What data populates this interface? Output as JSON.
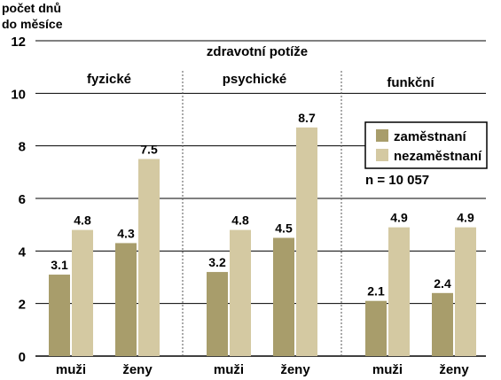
{
  "chart_data": {
    "type": "bar",
    "ylabel_lines": [
      "počet dnů",
      "do měsíce"
    ],
    "section_title": "zdravotní potíže",
    "ylim": [
      0,
      12
    ],
    "yticks": [
      0,
      2,
      4,
      6,
      8,
      10,
      12
    ],
    "grid": true,
    "legend_position": "right",
    "note": "n = 10 057",
    "groups": [
      {
        "label": "fyzické",
        "categories": [
          "muži",
          "ženy"
        ]
      },
      {
        "label": "psychické",
        "categories": [
          "muži",
          "ženy"
        ]
      },
      {
        "label": "funkční",
        "categories": [
          "muži",
          "ženy"
        ]
      }
    ],
    "categories": [
      "muži",
      "ženy",
      "muži",
      "ženy",
      "muži",
      "ženy"
    ],
    "series": [
      {
        "name": "zaměstnaní",
        "color": "#a89d6b",
        "values": [
          3.1,
          4.3,
          3.2,
          4.5,
          2.1,
          2.4
        ]
      },
      {
        "name": "nezaměstnaní",
        "color": "#d4c9a2",
        "values": [
          4.8,
          7.5,
          4.8,
          8.7,
          4.9,
          4.9
        ]
      }
    ]
  }
}
